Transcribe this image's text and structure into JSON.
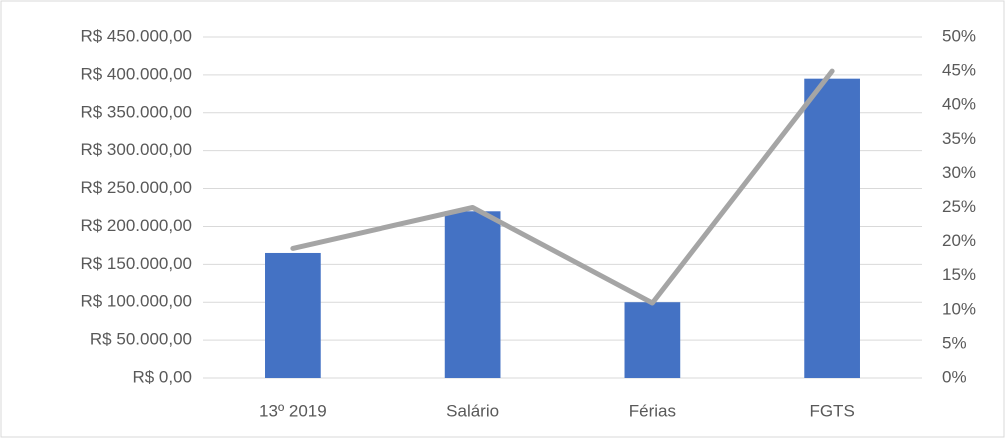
{
  "chart_data": {
    "type": "bar",
    "categories": [
      "13º 2019",
      "Salário",
      "Férias",
      "FGTS"
    ],
    "series": [
      {
        "type": "bar",
        "color": "#4472c4",
        "values": [
          165000,
          220000,
          100000,
          395000
        ]
      },
      {
        "type": "line",
        "axis": "y2",
        "color": "#a5a5a5",
        "values": [
          19,
          25,
          11,
          45
        ]
      }
    ],
    "ylim": [
      0,
      450000
    ],
    "yticks": [
      {
        "value": 0,
        "label": "R$ 0,00"
      },
      {
        "value": 50000,
        "label": "R$ 50.000,00"
      },
      {
        "value": 100000,
        "label": "R$ 100.000,00"
      },
      {
        "value": 150000,
        "label": "R$ 150.000,00"
      },
      {
        "value": 200000,
        "label": "R$ 200.000,00"
      },
      {
        "value": 250000,
        "label": "R$ 250.000,00"
      },
      {
        "value": 300000,
        "label": "R$ 300.000,00"
      },
      {
        "value": 350000,
        "label": "R$ 350.000,00"
      },
      {
        "value": 400000,
        "label": "R$ 400.000,00"
      },
      {
        "value": 450000,
        "label": "R$ 450.000,00"
      }
    ],
    "y2lim": [
      0,
      50
    ],
    "y2ticks": [
      {
        "value": 0,
        "label": "0%"
      },
      {
        "value": 5,
        "label": "5%"
      },
      {
        "value": 10,
        "label": "10%"
      },
      {
        "value": 15,
        "label": "15%"
      },
      {
        "value": 20,
        "label": "20%"
      },
      {
        "value": 25,
        "label": "25%"
      },
      {
        "value": 30,
        "label": "30%"
      },
      {
        "value": 35,
        "label": "35%"
      },
      {
        "value": 40,
        "label": "40%"
      },
      {
        "value": 45,
        "label": "45%"
      },
      {
        "value": 50,
        "label": "50%"
      }
    ],
    "grid": true
  }
}
